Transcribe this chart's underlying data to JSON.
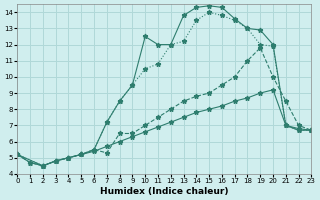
{
  "xlabel": "Humidex (Indice chaleur)",
  "bg_color": "#d0eeee",
  "grid_color": "#b0d8d8",
  "line_color": "#2e7d6e",
  "xlim": [
    0,
    23
  ],
  "ylim": [
    4,
    14.5
  ],
  "yticks": [
    4,
    5,
    6,
    7,
    8,
    9,
    10,
    11,
    12,
    13,
    14
  ],
  "xticks": [
    0,
    1,
    2,
    3,
    4,
    5,
    6,
    7,
    8,
    9,
    10,
    11,
    12,
    13,
    14,
    15,
    16,
    17,
    18,
    19,
    20,
    21,
    22,
    23
  ],
  "line1_x": [
    0,
    1,
    2,
    3,
    4,
    5,
    6,
    7,
    8,
    9,
    10,
    11,
    12,
    13,
    14,
    15,
    16,
    17,
    18,
    19,
    20,
    21,
    22,
    23
  ],
  "line1_y": [
    5.2,
    4.7,
    4.5,
    4.8,
    5.0,
    5.2,
    5.4,
    5.7,
    6.0,
    6.3,
    6.6,
    6.9,
    7.2,
    7.5,
    7.8,
    8.0,
    8.2,
    8.5,
    8.7,
    9.0,
    9.2,
    7.0,
    6.8,
    6.7
  ],
  "line2_x": [
    0,
    1,
    2,
    3,
    4,
    5,
    6,
    7,
    8,
    9,
    10,
    11,
    12,
    13,
    14,
    15,
    16,
    17,
    18,
    19,
    20,
    21,
    22,
    23
  ],
  "line2_y": [
    5.2,
    4.7,
    4.5,
    4.8,
    5.0,
    5.2,
    5.5,
    5.3,
    6.5,
    6.5,
    7.0,
    7.5,
    8.0,
    8.5,
    8.8,
    9.0,
    9.5,
    10.0,
    11.0,
    11.8,
    10.0,
    8.5,
    7.0,
    6.7
  ],
  "line3_x": [
    0,
    2,
    3,
    4,
    5,
    6,
    7,
    8,
    9,
    10,
    11,
    12,
    13,
    14,
    15,
    16,
    17,
    18,
    19,
    20,
    21,
    22,
    23
  ],
  "line3_y": [
    5.2,
    4.5,
    4.8,
    5.0,
    5.2,
    5.5,
    7.2,
    8.5,
    9.5,
    10.5,
    10.8,
    12.0,
    12.2,
    13.5,
    14.0,
    13.8,
    13.5,
    13.0,
    12.0,
    11.9,
    7.0,
    6.7,
    6.7
  ],
  "line4_x": [
    0,
    2,
    3,
    4,
    5,
    6,
    7,
    8,
    9,
    10,
    11,
    12,
    13,
    14,
    15,
    16,
    17,
    18,
    19,
    20,
    21,
    22,
    23
  ],
  "line4_y": [
    5.2,
    4.5,
    4.8,
    5.0,
    5.2,
    5.5,
    7.2,
    8.5,
    9.5,
    12.5,
    12.0,
    12.0,
    13.8,
    14.3,
    14.4,
    14.3,
    13.6,
    13.0,
    12.9,
    12.0,
    7.0,
    6.7,
    6.7
  ]
}
